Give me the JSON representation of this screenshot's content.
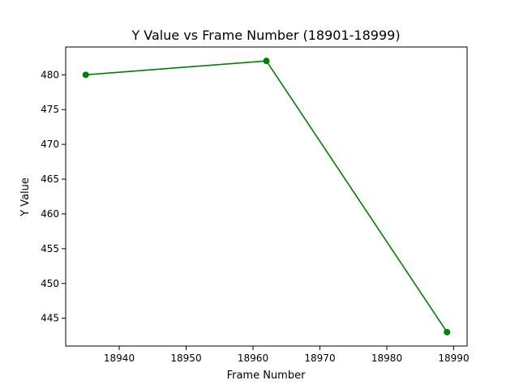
{
  "chart_data": {
    "type": "line",
    "title": "Y Value vs Frame Number (18901-18999)",
    "xlabel": "Frame Number",
    "ylabel": "Y Value",
    "xlim": [
      18932,
      18992
    ],
    "ylim": [
      441,
      484
    ],
    "xticks": [
      18940,
      18950,
      18960,
      18970,
      18980,
      18990
    ],
    "yticks": [
      445,
      450,
      455,
      460,
      465,
      470,
      475,
      480
    ],
    "grid": false,
    "series": [
      {
        "color": "#008000",
        "marker": "circle",
        "x": [
          18935,
          18962,
          18989
        ],
        "y": [
          480,
          482,
          443
        ]
      }
    ]
  }
}
